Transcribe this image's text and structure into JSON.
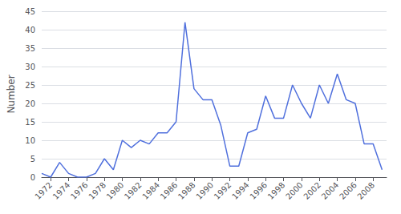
{
  "chart_data": {
    "type": "line",
    "x": [
      1971,
      1972,
      1973,
      1974,
      1975,
      1976,
      1977,
      1978,
      1979,
      1980,
      1981,
      1982,
      1983,
      1984,
      1985,
      1986,
      1987,
      1988,
      1989,
      1990,
      1991,
      1992,
      1993,
      1994,
      1995,
      1996,
      1997,
      1998,
      1999,
      2000,
      2001,
      2002,
      2003,
      2004,
      2005,
      2006,
      2007,
      2008,
      2009
    ],
    "values": [
      1,
      0,
      4,
      1,
      0,
      0,
      1,
      5,
      2,
      10,
      8,
      10,
      9,
      12,
      12,
      15,
      42,
      24,
      21,
      21,
      14,
      3,
      3,
      12,
      13,
      22,
      16,
      16,
      25,
      20,
      16,
      25,
      20,
      28,
      21,
      20,
      9,
      9,
      2
    ],
    "ylabel": "Number",
    "xlim": [
      1971,
      2009.5
    ],
    "xticks": [
      1972,
      1974,
      1976,
      1978,
      1980,
      1982,
      1984,
      1986,
      1988,
      1990,
      1992,
      1994,
      1996,
      1998,
      2000,
      2002,
      2004,
      2006,
      2008
    ],
    "ylim": [
      0,
      45
    ],
    "yticks": [
      0,
      5,
      10,
      15,
      20,
      25,
      30,
      35,
      40,
      45
    ],
    "grid": true
  }
}
